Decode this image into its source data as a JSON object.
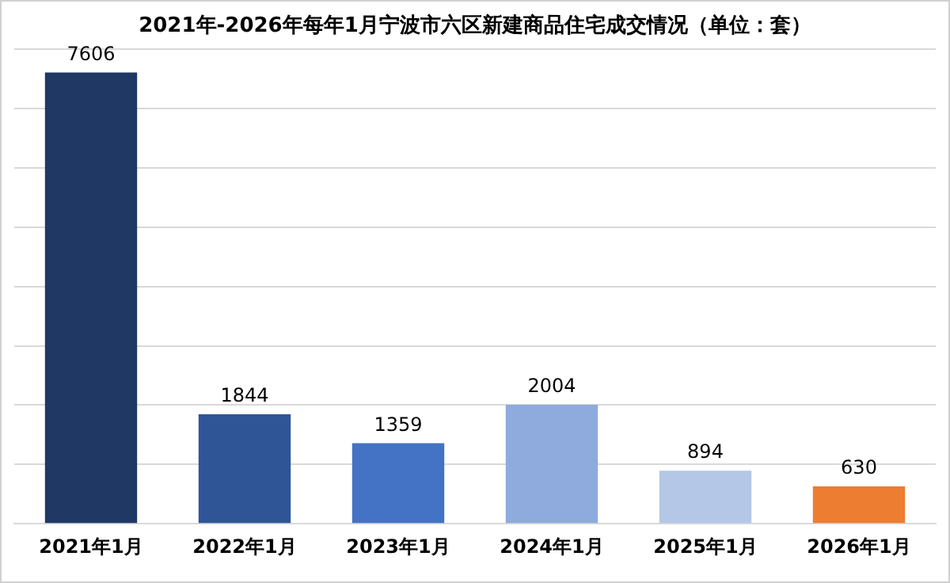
{
  "chart_data": {
    "type": "bar",
    "title": "2021年-2026年每年1月宁波市六区新建商品住宅成交情况（单位：套）",
    "categories": [
      "2021年1月",
      "2022年1月",
      "2023年1月",
      "2024年1月",
      "2025年1月",
      "2026年1月"
    ],
    "values": [
      7606,
      1844,
      1359,
      2004,
      894,
      630
    ],
    "colors": [
      "#203864",
      "#2f5597",
      "#4472c4",
      "#8faadc",
      "#b4c7e7",
      "#ed7d31"
    ],
    "grid": "y",
    "tick_labels": "x",
    "data_labels": true
  }
}
